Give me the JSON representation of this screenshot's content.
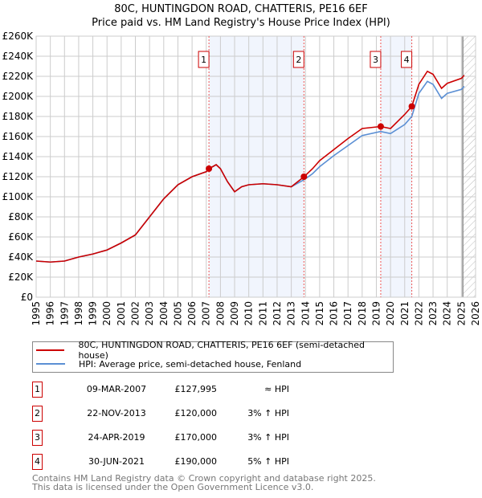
{
  "chart_data": {
    "type": "line",
    "title": "80C, HUNTINGDON ROAD, CHATTERIS, PE16 6EF",
    "subtitle": "Price paid vs. HM Land Registry's House Price Index (HPI)",
    "xlim": [
      1995,
      2026
    ],
    "ylim": [
      0,
      260000
    ],
    "x_ticks": [
      "1995",
      "1996",
      "1997",
      "1998",
      "1999",
      "2000",
      "2001",
      "2002",
      "2003",
      "2004",
      "2005",
      "2006",
      "2007",
      "2008",
      "2009",
      "2010",
      "2011",
      "2012",
      "2013",
      "2014",
      "2015",
      "2016",
      "2017",
      "2018",
      "2019",
      "2020",
      "2021",
      "2022",
      "2023",
      "2024",
      "2025",
      "2026"
    ],
    "y_ticks": [
      "£0",
      "£20K",
      "£40K",
      "£60K",
      "£80K",
      "£100K",
      "£120K",
      "£140K",
      "£160K",
      "£180K",
      "£200K",
      "£220K",
      "£240K",
      "£260K"
    ],
    "grid": true,
    "series": [
      {
        "name": "80C, HUNTINGDON ROAD, CHATTERIS, PE16 6EF (semi-detached house)",
        "color": "#cc0000",
        "x": [
          1995,
          1996,
          1997,
          1998,
          1999,
          2000,
          2001,
          2002,
          2003,
          2004,
          2005,
          2006,
          2007,
          2007.2,
          2007.7,
          2008,
          2008.5,
          2009,
          2009.5,
          2010,
          2011,
          2012,
          2013,
          2013.9,
          2014.5,
          2015,
          2016,
          2017,
          2018,
          2019.3,
          2020,
          2021,
          2021.5,
          2022,
          2022.6,
          2023,
          2023.6,
          2024,
          2025,
          2025.2
        ],
        "y": [
          36000,
          35000,
          36000,
          40000,
          43000,
          47000,
          54000,
          62000,
          80000,
          98000,
          112000,
          120000,
          125000,
          127995,
          132000,
          128000,
          115000,
          105000,
          110000,
          112000,
          113000,
          112000,
          110000,
          120000,
          128000,
          136000,
          147000,
          158000,
          168000,
          170000,
          168000,
          182000,
          190000,
          212000,
          225000,
          222000,
          208000,
          213000,
          218000,
          221000
        ]
      },
      {
        "name": "HPI: Average price, semi-detached house, Fenland",
        "color": "#5b8fd4",
        "x": [
          1995,
          1996,
          1997,
          1998,
          1999,
          2000,
          2001,
          2002,
          2003,
          2004,
          2005,
          2006,
          2007,
          2007.2,
          2007.7,
          2008,
          2008.5,
          2009,
          2009.5,
          2010,
          2011,
          2012,
          2013,
          2013.9,
          2014.5,
          2015,
          2016,
          2017,
          2018,
          2019.3,
          2020,
          2021,
          2021.5,
          2022,
          2022.6,
          2023,
          2023.6,
          2024,
          2025,
          2025.2
        ],
        "y": [
          36000,
          35000,
          36000,
          40000,
          43000,
          47000,
          54000,
          62000,
          80000,
          98000,
          112000,
          120000,
          125000,
          127995,
          132000,
          128000,
          115000,
          105000,
          110000,
          112000,
          113000,
          112000,
          110000,
          117000,
          123000,
          130000,
          141000,
          151000,
          161000,
          165000,
          163000,
          172000,
          180000,
          203000,
          215000,
          212000,
          198000,
          203000,
          207000,
          210000
        ]
      }
    ],
    "sales": [
      {
        "label": "1",
        "x": 2007.19,
        "y": 127995
      },
      {
        "label": "2",
        "x": 2013.89,
        "y": 120000
      },
      {
        "label": "3",
        "x": 2019.31,
        "y": 170000
      },
      {
        "label": "4",
        "x": 2021.5,
        "y": 190000
      }
    ],
    "shaded_ranges": [
      [
        2007.19,
        2013.89
      ],
      [
        2019.31,
        2021.5
      ]
    ],
    "hatched_from": 2025.1,
    "legend_placement": "below"
  },
  "table": [
    {
      "num": "1",
      "date": "09-MAR-2007",
      "price": "£127,995",
      "rel": "≈ HPI"
    },
    {
      "num": "2",
      "date": "22-NOV-2013",
      "price": "£120,000",
      "rel": "3% ↑ HPI"
    },
    {
      "num": "3",
      "date": "24-APR-2019",
      "price": "£170,000",
      "rel": "3% ↑ HPI"
    },
    {
      "num": "4",
      "date": "30-JUN-2021",
      "price": "£190,000",
      "rel": "5% ↑ HPI"
    }
  ],
  "footer": {
    "line1": "Contains HM Land Registry data © Crown copyright and database right 2025.",
    "line2": "This data is licensed under the Open Government Licence v3.0."
  }
}
